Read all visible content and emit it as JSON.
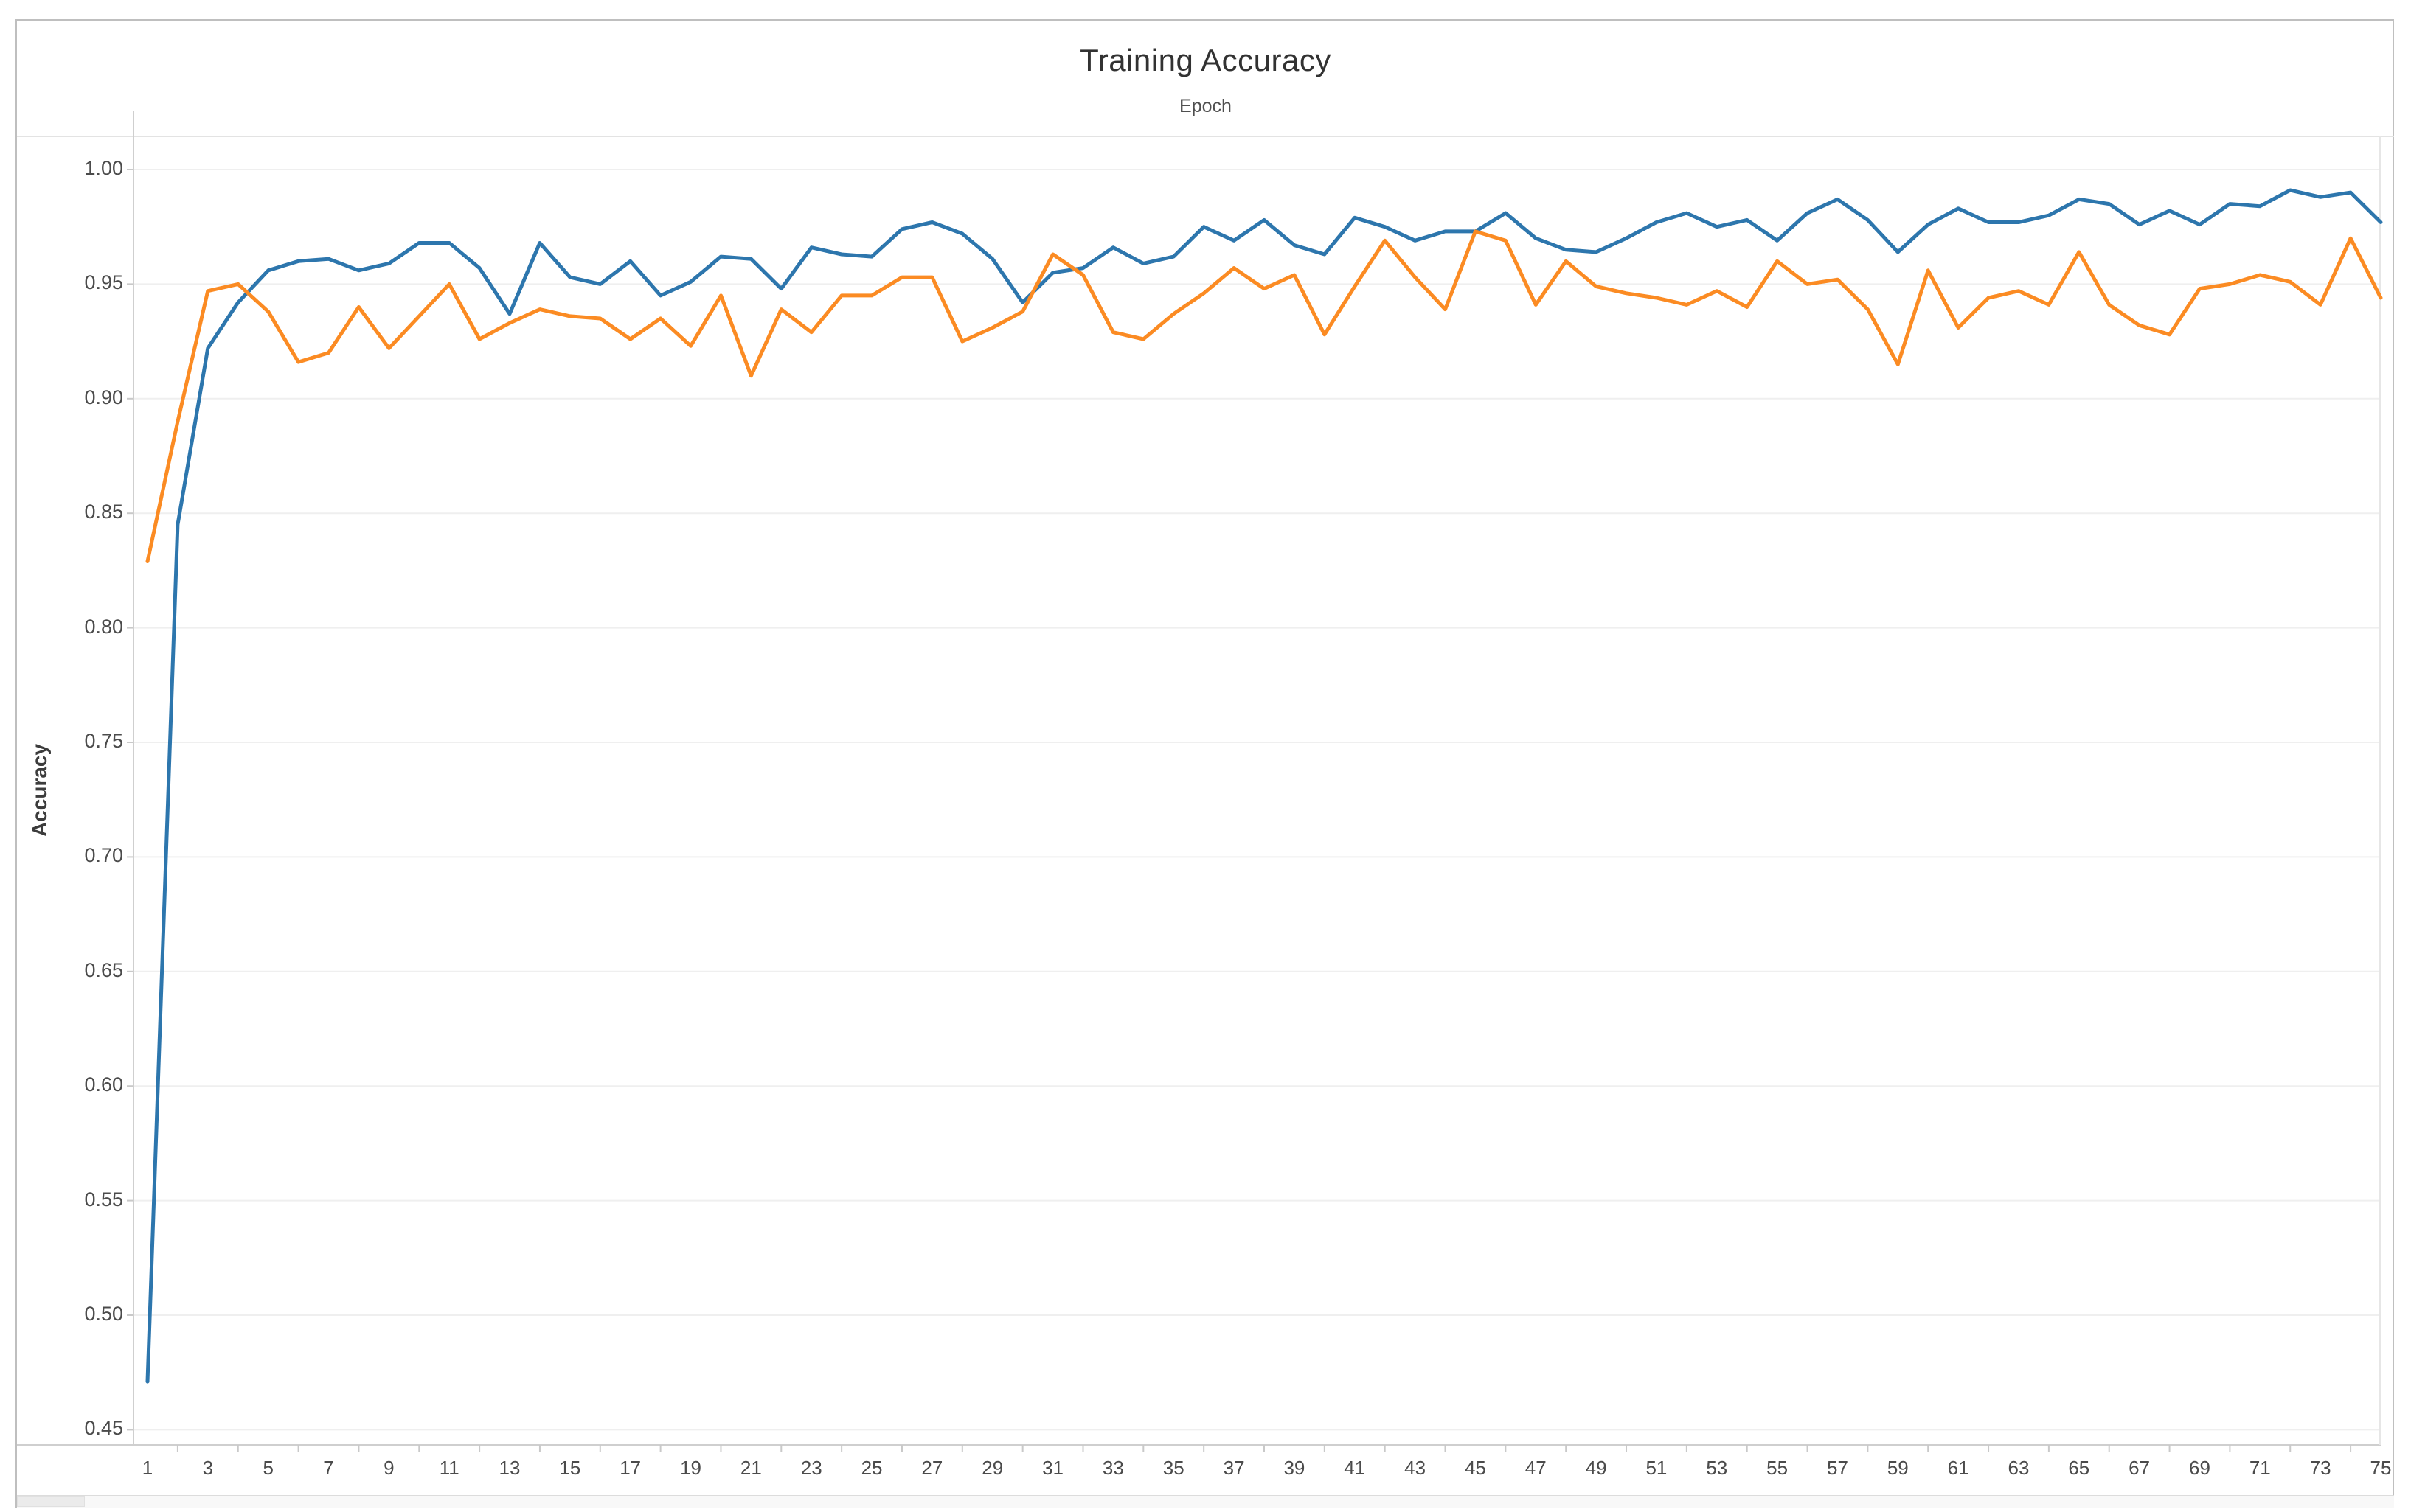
{
  "window": {
    "background": "#ffffff",
    "frame_border_color": "#bfbfbf"
  },
  "header": {
    "title": "Training Accuracy",
    "x_axis_title": "Epoch"
  },
  "y_axis": {
    "title": "Accuracy"
  },
  "colors": {
    "gridline": "#efefef",
    "axis_line": "#cfcfcf",
    "tick_mark": "#c9c9c9",
    "plot_border": "#e6e6e6",
    "tick_text": "#4b4b4b"
  },
  "chart_data": {
    "type": "line",
    "title": "Training Accuracy",
    "xlabel": "Epoch",
    "ylabel": "Accuracy",
    "legend": "none",
    "grid": "horizontal",
    "xlim": [
      1,
      75
    ],
    "ylim": [
      0.45,
      1.005
    ],
    "x": [
      1,
      2,
      3,
      4,
      5,
      6,
      7,
      8,
      9,
      10,
      11,
      12,
      13,
      14,
      15,
      16,
      17,
      18,
      19,
      20,
      21,
      22,
      23,
      24,
      25,
      26,
      27,
      28,
      29,
      30,
      31,
      32,
      33,
      34,
      35,
      36,
      37,
      38,
      39,
      40,
      41,
      42,
      43,
      44,
      45,
      46,
      47,
      48,
      49,
      50,
      51,
      52,
      53,
      54,
      55,
      56,
      57,
      58,
      59,
      60,
      61,
      62,
      63,
      64,
      65,
      66,
      67,
      68,
      69,
      70,
      71,
      72,
      73,
      74,
      75
    ],
    "xtick_values": [
      1,
      3,
      5,
      7,
      9,
      11,
      13,
      15,
      17,
      19,
      21,
      23,
      25,
      27,
      29,
      31,
      33,
      35,
      37,
      39,
      41,
      43,
      45,
      47,
      49,
      51,
      53,
      55,
      57,
      59,
      61,
      63,
      65,
      67,
      69,
      71,
      73,
      75
    ],
    "ytick_values": [
      1.0,
      0.95,
      0.9,
      0.85,
      0.8,
      0.75,
      0.7,
      0.65,
      0.6,
      0.55,
      0.5,
      0.45
    ],
    "ytick_labels": [
      "1.00",
      "0.95",
      "0.90",
      "0.85",
      "0.80",
      "0.75",
      "0.70",
      "0.65",
      "0.60",
      "0.55",
      "0.50",
      "0.45"
    ],
    "series": [
      {
        "name": "blue",
        "color": "#2d76ad",
        "values": [
          0.471,
          0.845,
          0.922,
          0.942,
          0.956,
          0.96,
          0.961,
          0.956,
          0.959,
          0.968,
          0.968,
          0.957,
          0.937,
          0.968,
          0.953,
          0.95,
          0.96,
          0.945,
          0.951,
          0.962,
          0.961,
          0.948,
          0.966,
          0.963,
          0.962,
          0.974,
          0.977,
          0.972,
          0.961,
          0.942,
          0.955,
          0.957,
          0.966,
          0.959,
          0.962,
          0.975,
          0.969,
          0.978,
          0.967,
          0.963,
          0.979,
          0.975,
          0.969,
          0.973,
          0.973,
          0.981,
          0.97,
          0.965,
          0.964,
          0.97,
          0.977,
          0.981,
          0.975,
          0.978,
          0.969,
          0.981,
          0.987,
          0.978,
          0.964,
          0.976,
          0.983,
          0.977,
          0.977,
          0.98,
          0.987,
          0.985,
          0.976,
          0.982,
          0.976,
          0.985,
          0.984,
          0.991,
          0.988,
          0.99,
          0.977
        ]
      },
      {
        "name": "orange",
        "color": "#fb8b23",
        "values": [
          0.829,
          0.89,
          0.947,
          0.95,
          0.938,
          0.916,
          0.92,
          0.94,
          0.922,
          0.936,
          0.95,
          0.926,
          0.933,
          0.939,
          0.936,
          0.935,
          0.926,
          0.935,
          0.923,
          0.945,
          0.91,
          0.939,
          0.929,
          0.945,
          0.945,
          0.953,
          0.953,
          0.925,
          0.931,
          0.938,
          0.963,
          0.954,
          0.929,
          0.926,
          0.937,
          0.946,
          0.957,
          0.948,
          0.954,
          0.928,
          0.949,
          0.969,
          0.953,
          0.939,
          0.973,
          0.969,
          0.941,
          0.96,
          0.949,
          0.946,
          0.944,
          0.941,
          0.947,
          0.94,
          0.96,
          0.95,
          0.952,
          0.939,
          0.915,
          0.956,
          0.931,
          0.944,
          0.947,
          0.941,
          0.964,
          0.941,
          0.932,
          0.928,
          0.948,
          0.95,
          0.954,
          0.951,
          0.941,
          0.97,
          0.944
        ]
      }
    ]
  }
}
